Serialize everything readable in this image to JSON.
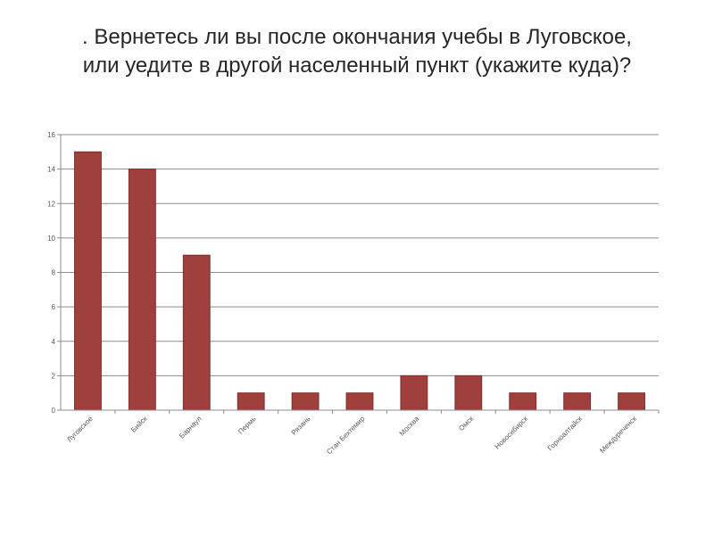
{
  "title": {
    "line1": ". Вернетесь ли вы после окончания учебы в Луговское,",
    "line2": "или уедите в  другой населенный пункт (укажите куда)?"
  },
  "chart_data": {
    "type": "bar",
    "categories": [
      "Луговское",
      "Бийск",
      "Барнаул",
      "Пермь",
      "Рязань",
      "Стан Бехтемир",
      "Москва",
      "Омск",
      "Новосибирск",
      "Горноалтайск",
      "Междуреченск"
    ],
    "values": [
      15,
      14,
      9,
      1,
      1,
      1,
      2,
      2,
      1,
      1,
      1
    ],
    "ylim": [
      0,
      16
    ],
    "yticks": [
      0,
      2,
      4,
      6,
      8,
      10,
      12,
      14,
      16
    ],
    "grid": true,
    "legend": "none",
    "bar_color": "#A0403D",
    "bar_edge_color": "#7A2E2C"
  }
}
